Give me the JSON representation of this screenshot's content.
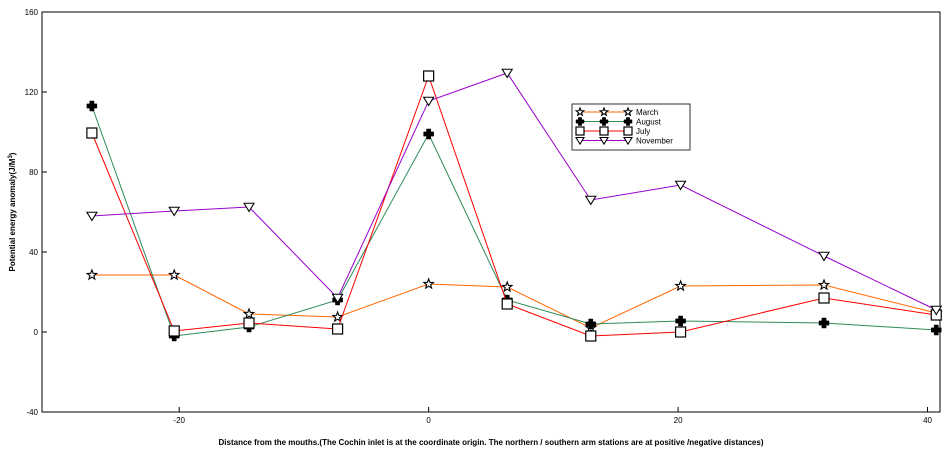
{
  "chart_data": {
    "type": "line",
    "xlabel": "Distance from the mouths.(The Cochin inlet is at the coordinate origin. The northern / southern  arm stations are at positive /negative distances)",
    "ylabel_text": "Potential energy anomaly(J/M",
    "ylabel_sup": "3",
    "ylabel_close": ")",
    "xlim": [
      -31,
      41
    ],
    "ylim": [
      -40,
      160
    ],
    "x_ticks": [
      -20,
      0,
      20,
      40
    ],
    "x_tick_labels": [
      "-20",
      "0",
      "20",
      "40"
    ],
    "y_ticks": [
      -40,
      0,
      40,
      80,
      120,
      160
    ],
    "y_tick_labels": [
      "-40",
      "0",
      "40",
      "80",
      "120",
      "160"
    ],
    "grid": false,
    "legend_position": "upper-center-right",
    "series": [
      {
        "name": "March",
        "color": "#ff6600",
        "marker": "star",
        "points": [
          [
            -27,
            28.5
          ],
          [
            -20.4,
            28.5
          ],
          [
            -14.4,
            9
          ],
          [
            -7.3,
            7.5
          ],
          [
            0,
            24
          ],
          [
            6.3,
            22.5
          ],
          [
            13,
            2
          ],
          [
            20.2,
            23
          ],
          [
            31.7,
            23.5
          ],
          [
            40.7,
            9.5
          ]
        ]
      },
      {
        "name": "August",
        "color": "#2e8b57",
        "marker": "plus",
        "points": [
          [
            -27,
            113
          ],
          [
            -20.4,
            -2
          ],
          [
            -14.4,
            2.5
          ],
          [
            -7.3,
            16
          ],
          [
            0,
            99
          ],
          [
            6.3,
            16
          ],
          [
            13,
            4
          ],
          [
            20.2,
            5.5
          ],
          [
            31.7,
            4.5
          ],
          [
            40.7,
            1
          ]
        ]
      },
      {
        "name": "July",
        "color": "#ff0000",
        "marker": "square",
        "points": [
          [
            -27,
            99.5
          ],
          [
            -20.4,
            0.5
          ],
          [
            -14.4,
            4.5
          ],
          [
            -7.3,
            1.5
          ],
          [
            0,
            128
          ],
          [
            6.3,
            14
          ],
          [
            13,
            -2
          ],
          [
            20.2,
            0
          ],
          [
            31.7,
            17
          ],
          [
            40.7,
            8.5
          ]
        ]
      },
      {
        "name": "November",
        "color": "#9900cc",
        "marker": "triangle-down",
        "points": [
          [
            -27,
            58
          ],
          [
            -20.4,
            60.5
          ],
          [
            -14.4,
            62.5
          ],
          [
            -7.3,
            17
          ],
          [
            0,
            115.5
          ],
          [
            6.3,
            129.5
          ],
          [
            13,
            66
          ],
          [
            20.2,
            73.5
          ],
          [
            31.7,
            38
          ],
          [
            40.7,
            11
          ]
        ]
      }
    ]
  }
}
